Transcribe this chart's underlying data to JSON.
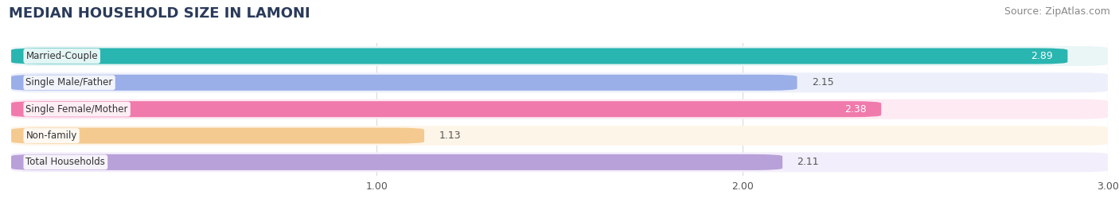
{
  "title": "MEDIAN HOUSEHOLD SIZE IN LAMONI",
  "source": "Source: ZipAtlas.com",
  "categories": [
    "Married-Couple",
    "Single Male/Father",
    "Single Female/Mother",
    "Non-family",
    "Total Households"
  ],
  "values": [
    2.89,
    2.15,
    2.38,
    1.13,
    2.11
  ],
  "bar_colors": [
    "#29b5b0",
    "#9aaee8",
    "#f07aab",
    "#f5ca90",
    "#b8a0d8"
  ],
  "bar_bg_colors": [
    "#eaf6f6",
    "#edf0fb",
    "#fdeaf3",
    "#fef5e9",
    "#f3eefb"
  ],
  "label_colors": [
    "#ffffff",
    "#666666",
    "#ffffff",
    "#666666",
    "#666666"
  ],
  "xlim_data": [
    0.0,
    3.0
  ],
  "xmin": 0.0,
  "xmax": 3.0,
  "xticks": [
    1.0,
    2.0,
    3.0
  ],
  "title_fontsize": 13,
  "source_fontsize": 9,
  "bar_label_fontsize": 9,
  "category_fontsize": 8.5,
  "background_color": "#ffffff",
  "grid_color": "#dddddd",
  "title_color": "#2a3a5a",
  "source_color": "#888888"
}
